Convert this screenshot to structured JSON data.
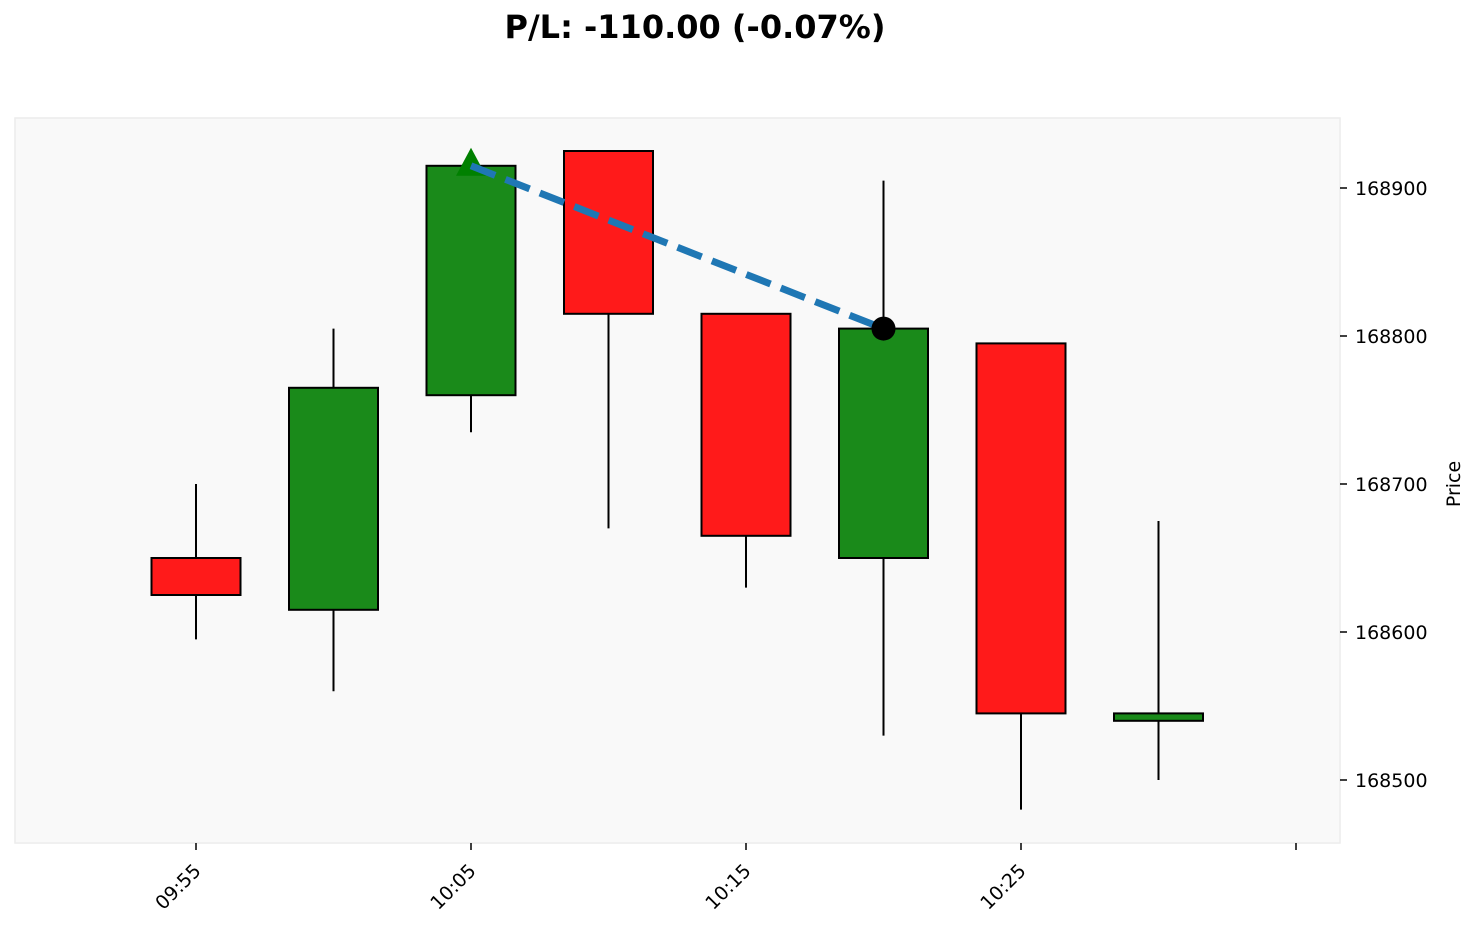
{
  "chart_data": {
    "type": "candlestick",
    "title": "P/L: -110.00 (-0.07%)",
    "ylabel": "Price",
    "xlabel": "",
    "ylim": [
      168455,
      168945
    ],
    "x_ticks": [
      "09:55",
      "10:05",
      "10:15",
      "10:25",
      ""
    ],
    "y_ticks": [
      168500,
      168600,
      168700,
      168800,
      168900
    ],
    "grid": false,
    "colors": {
      "up": "#1a8a1a",
      "down": "#ff1a1a",
      "trade_line": "#1f77b4",
      "entry_marker": "#008000",
      "exit_marker": "#000000",
      "plot_bg": "#f9f9f9"
    },
    "candles": [
      {
        "time": "09:55",
        "open": 168650,
        "high": 168700,
        "low": 168595,
        "close": 168625
      },
      {
        "time": "10:00",
        "open": 168615,
        "high": 168805,
        "low": 168560,
        "close": 168765
      },
      {
        "time": "10:05",
        "open": 168760,
        "high": 168925,
        "low": 168735,
        "close": 168915
      },
      {
        "time": "10:10",
        "open": 168925,
        "high": 168925,
        "low": 168670,
        "close": 168815
      },
      {
        "time": "10:15",
        "open": 168815,
        "high": 168815,
        "low": 168630,
        "close": 168665
      },
      {
        "time": "10:20",
        "open": 168650,
        "high": 168905,
        "low": 168530,
        "close": 168805
      },
      {
        "time": "10:25",
        "open": 168795,
        "high": 168795,
        "low": 168480,
        "close": 168545
      },
      {
        "time": "10:30",
        "open": 168540,
        "high": 168675,
        "low": 168500,
        "close": 168545
      }
    ],
    "trade": {
      "entry": {
        "time": "10:05",
        "price": 168915
      },
      "exit": {
        "time": "10:20",
        "price": 168805
      }
    }
  }
}
